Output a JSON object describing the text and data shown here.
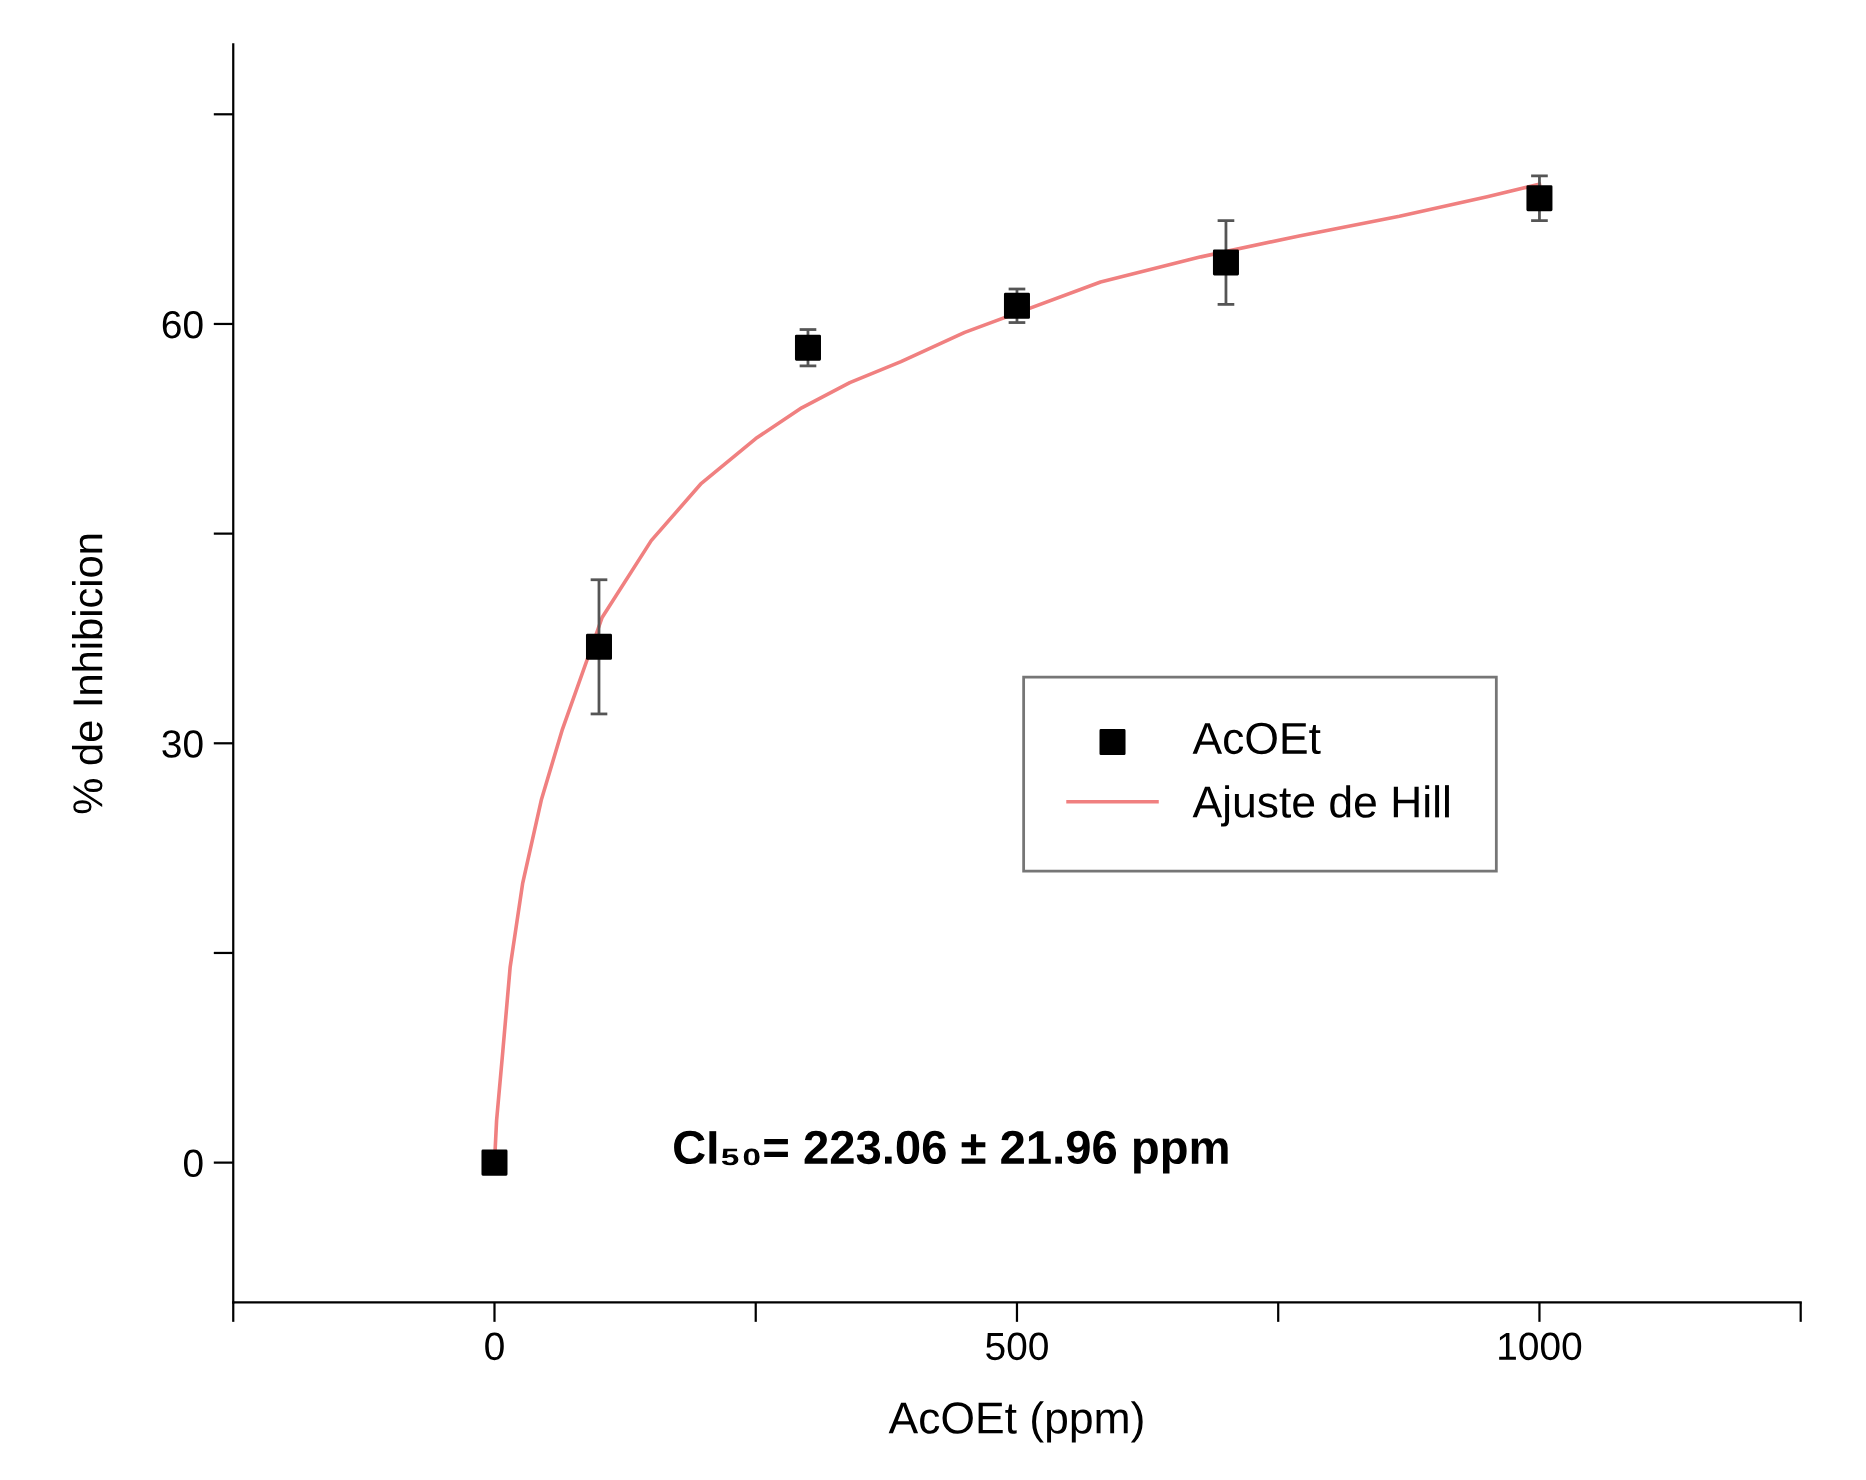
{
  "chart_data": {
    "type": "scatter",
    "xlabel": "AcOEt (ppm)",
    "ylabel": "% de Inhibicion",
    "xlim": [
      -250,
      1250
    ],
    "ylim": [
      -10,
      80
    ],
    "xticks": [
      {
        "value": -250,
        "label": null
      },
      0,
      {
        "value": 250,
        "label": null
      },
      500,
      {
        "value": 750,
        "label": null
      },
      1000,
      {
        "value": 1250,
        "label": null
      }
    ],
    "yticks": [
      0,
      {
        "value": 15,
        "label": null
      },
      30,
      {
        "value": 45,
        "label": null
      },
      60,
      {
        "value": 75,
        "label": null
      }
    ],
    "grid": false,
    "legend": "right",
    "annotations": [
      "CI₅₀= 223.06 ± 21.96 ppm"
    ],
    "series": [
      {
        "name": "AcOEt",
        "marker": "square",
        "color": "#000000",
        "x": [
          0,
          100,
          300,
          500,
          700,
          1000
        ],
        "values": [
          0,
          36.9,
          58.3,
          61.3,
          64.4,
          69.0
        ],
        "errors": [
          null,
          4.8,
          1.3,
          1.2,
          3.0,
          1.6
        ]
      },
      {
        "name": "Ajuste de Hill",
        "type": "line",
        "color": "#f08080",
        "line_style": "solid",
        "x": [
          0,
          2,
          8,
          15,
          27,
          45,
          65,
          103,
          150,
          198,
          250,
          294,
          340,
          389,
          450,
          580,
          676,
          770,
          866,
          950,
          1000
        ],
        "values": [
          0,
          3,
          8,
          14,
          20,
          26,
          31,
          39,
          44.5,
          48.6,
          51.8,
          54,
          55.8,
          57.3,
          59.4,
          63,
          64.8,
          66.3,
          67.7,
          69.1,
          70
        ]
      }
    ]
  }
}
